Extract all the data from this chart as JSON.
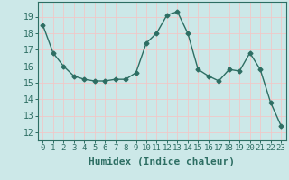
{
  "x": [
    0,
    1,
    2,
    3,
    4,
    5,
    6,
    7,
    8,
    9,
    10,
    11,
    12,
    13,
    14,
    15,
    16,
    17,
    18,
    19,
    20,
    21,
    22,
    23
  ],
  "y": [
    18.5,
    16.8,
    16.0,
    15.4,
    15.2,
    15.1,
    15.1,
    15.2,
    15.2,
    15.6,
    17.4,
    18.0,
    19.1,
    19.3,
    18.0,
    15.8,
    15.4,
    15.1,
    15.8,
    15.7,
    16.8,
    15.8,
    13.8,
    12.4
  ],
  "line_color": "#2d6e63",
  "marker": "D",
  "marker_size": 2.5,
  "line_width": 1.0,
  "bg_color": "#cce8e8",
  "grid_color": "#f0c8c8",
  "xlabel": "Humidex (Indice chaleur)",
  "xlabel_fontsize": 8,
  "ylabel_ticks": [
    12,
    13,
    14,
    15,
    16,
    17,
    18,
    19
  ],
  "xtick_labels": [
    "0",
    "1",
    "2",
    "3",
    "4",
    "5",
    "6",
    "7",
    "8",
    "9",
    "10",
    "11",
    "12",
    "13",
    "14",
    "15",
    "16",
    "17",
    "18",
    "19",
    "20",
    "21",
    "22",
    "23"
  ],
  "ylim": [
    11.5,
    19.9
  ],
  "xlim": [
    -0.5,
    23.5
  ],
  "tick_color": "#2d6e63",
  "tick_fontsize": 7,
  "axis_color": "#2d6e63"
}
